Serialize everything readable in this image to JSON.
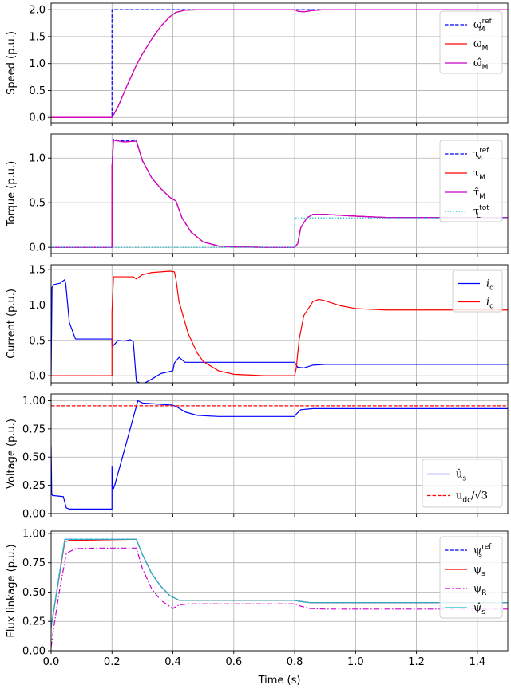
{
  "chart_data": [
    {
      "type": "line",
      "ylabel": "Speed (p.u.)",
      "xlim": [
        0,
        1.5
      ],
      "ylim": [
        -0.1,
        2.12
      ],
      "yticks": [
        0,
        0.5,
        1,
        1.5,
        2
      ],
      "ytick_labels": [
        "0.0",
        "0.5",
        "1.0",
        "1.5",
        "2.0"
      ],
      "grid": true,
      "legend_position": "top-right",
      "series": [
        {
          "name": "ω_M^ref",
          "legend": {
            "base": "ω",
            "sub": "M",
            "sup": "ref"
          },
          "color": "#0000ff",
          "dash": "dashed",
          "x": [
            0,
            0.2,
            0.2,
            1.5
          ],
          "y": [
            0,
            0,
            2,
            2
          ]
        },
        {
          "name": "ω_M",
          "legend": {
            "base": "ω",
            "sub": "M"
          },
          "color": "#ff0000",
          "dash": "solid",
          "x": [
            0,
            0.2,
            0.22,
            0.25,
            0.28,
            0.3,
            0.33,
            0.36,
            0.39,
            0.41,
            0.44,
            0.5,
            0.6,
            0.8,
            0.81,
            0.83,
            0.86,
            0.9,
            1.0,
            1.5
          ],
          "y": [
            0,
            0,
            0.2,
            0.6,
            0.97,
            1.18,
            1.45,
            1.69,
            1.87,
            1.95,
            1.99,
            2.0,
            2.0,
            2.0,
            1.97,
            1.96,
            1.985,
            2.0,
            2.0,
            2.0
          ]
        },
        {
          "name": "ω̂_M",
          "legend": {
            "base": "ω̂",
            "sub": "M"
          },
          "color": "#cc00cc",
          "dash": "solid",
          "x": [
            0,
            0.2,
            0.22,
            0.25,
            0.28,
            0.3,
            0.33,
            0.36,
            0.39,
            0.41,
            0.44,
            0.5,
            0.6,
            0.8,
            0.81,
            0.83,
            0.86,
            0.9,
            1.0,
            1.5
          ],
          "y": [
            0,
            0,
            0.2,
            0.6,
            0.97,
            1.18,
            1.45,
            1.69,
            1.87,
            1.95,
            1.99,
            2.0,
            2.0,
            2.0,
            1.97,
            1.96,
            1.985,
            2.0,
            2.0,
            2.0
          ]
        }
      ]
    },
    {
      "type": "line",
      "ylabel": "Torque (p.u.)",
      "xlim": [
        0,
        1.5
      ],
      "ylim": [
        -0.07,
        1.27
      ],
      "yticks": [
        0,
        0.5,
        1
      ],
      "ytick_labels": [
        "0.0",
        "0.5",
        "1.0"
      ],
      "grid": true,
      "legend_position": "top-right",
      "series": [
        {
          "name": "τ_M^ref",
          "legend": {
            "base": "τ",
            "sub": "M",
            "sup": "ref"
          },
          "color": "#0000ff",
          "dash": "dashed",
          "x": [
            0,
            0.2,
            0.2,
            0.205,
            0.24,
            0.28,
            0.3,
            0.33,
            0.36,
            0.39,
            0.41,
            0.43,
            0.46,
            0.5,
            0.55,
            0.6,
            0.7,
            0.8,
            0.81,
            0.82,
            0.84,
            0.86,
            0.9,
            1.0,
            1.1,
            1.5
          ],
          "y": [
            0,
            0,
            0.9,
            1.21,
            1.19,
            1.2,
            0.97,
            0.78,
            0.66,
            0.56,
            0.52,
            0.33,
            0.17,
            0.06,
            0.015,
            0.005,
            0,
            0,
            0.04,
            0.22,
            0.33,
            0.37,
            0.37,
            0.35,
            0.335,
            0.335
          ]
        },
        {
          "name": "τ_M",
          "legend": {
            "base": "τ",
            "sub": "M"
          },
          "color": "#ff0000",
          "dash": "solid",
          "x": [
            0,
            0.2,
            0.2,
            0.205,
            0.24,
            0.28,
            0.3,
            0.33,
            0.36,
            0.39,
            0.41,
            0.43,
            0.46,
            0.5,
            0.55,
            0.6,
            0.7,
            0.8,
            0.81,
            0.82,
            0.84,
            0.86,
            0.9,
            1.0,
            1.1,
            1.5
          ],
          "y": [
            0,
            0,
            0.9,
            1.2,
            1.18,
            1.19,
            0.97,
            0.78,
            0.66,
            0.56,
            0.52,
            0.33,
            0.17,
            0.06,
            0.015,
            0.005,
            0,
            0,
            0.04,
            0.22,
            0.33,
            0.37,
            0.37,
            0.35,
            0.335,
            0.335
          ]
        },
        {
          "name": "τ̂_M",
          "legend": {
            "base": "τ̂",
            "sub": "M"
          },
          "color": "#cc00cc",
          "dash": "solid",
          "x": [
            0,
            0.2,
            0.2,
            0.205,
            0.24,
            0.28,
            0.3,
            0.33,
            0.36,
            0.39,
            0.41,
            0.43,
            0.46,
            0.5,
            0.55,
            0.6,
            0.7,
            0.8,
            0.81,
            0.82,
            0.84,
            0.86,
            0.9,
            1.0,
            1.1,
            1.5
          ],
          "y": [
            0,
            0,
            0.9,
            1.2,
            1.18,
            1.19,
            0.97,
            0.78,
            0.66,
            0.56,
            0.52,
            0.33,
            0.17,
            0.06,
            0.015,
            0.005,
            0,
            0,
            0.04,
            0.22,
            0.33,
            0.37,
            0.37,
            0.35,
            0.335,
            0.335
          ]
        },
        {
          "name": "τ_L^tot",
          "legend": {
            "base": "τ",
            "sub": "L",
            "sup": "tot"
          },
          "color": "#17becf",
          "dash": "dotted",
          "x": [
            0,
            0.8,
            0.8,
            1.5
          ],
          "y": [
            0,
            0,
            0.33,
            0.33
          ]
        }
      ]
    },
    {
      "type": "line",
      "ylabel": "Current (p.u.)",
      "xlim": [
        0,
        1.5
      ],
      "ylim": [
        -0.1,
        1.57
      ],
      "yticks": [
        0,
        0.5,
        1,
        1.5
      ],
      "ytick_labels": [
        "0.0",
        "0.5",
        "1.0",
        "1.5"
      ],
      "grid": true,
      "legend_position": "top-right",
      "series": [
        {
          "name": "i_d",
          "legend": {
            "base": "i",
            "sub": "d",
            "italic": true
          },
          "color": "#0000ff",
          "dash": "solid",
          "x": [
            0,
            0.003,
            0.01,
            0.03,
            0.045,
            0.048,
            0.06,
            0.08,
            0.1,
            0.2,
            0.2,
            0.203,
            0.22,
            0.24,
            0.26,
            0.27,
            0.28,
            0.3,
            0.33,
            0.36,
            0.4,
            0.405,
            0.42,
            0.44,
            0.5,
            0.6,
            0.8,
            0.81,
            0.83,
            0.86,
            0.9,
            1.0,
            1.5
          ],
          "y": [
            0,
            1.25,
            1.29,
            1.31,
            1.36,
            1.3,
            0.75,
            0.52,
            0.52,
            0.52,
            0.44,
            0.42,
            0.5,
            0.49,
            0.51,
            0.48,
            -0.08,
            -0.12,
            -0.05,
            0.03,
            0.07,
            0.18,
            0.26,
            0.19,
            0.19,
            0.19,
            0.19,
            0.12,
            0.11,
            0.15,
            0.16,
            0.16,
            0.16
          ]
        },
        {
          "name": "i_q",
          "legend": {
            "base": "i",
            "sub": "q",
            "italic": true
          },
          "color": "#ff0000",
          "dash": "solid",
          "x": [
            0,
            0.2,
            0.2,
            0.205,
            0.26,
            0.27,
            0.28,
            0.3,
            0.33,
            0.36,
            0.39,
            0.405,
            0.41,
            0.42,
            0.45,
            0.48,
            0.5,
            0.55,
            0.6,
            0.7,
            0.8,
            0.805,
            0.815,
            0.83,
            0.86,
            0.88,
            0.9,
            0.95,
            1.0,
            1.1,
            1.5
          ],
          "y": [
            0,
            0,
            0.9,
            1.4,
            1.4,
            1.4,
            1.37,
            1.43,
            1.46,
            1.47,
            1.48,
            1.47,
            1.37,
            1.05,
            0.6,
            0.32,
            0.2,
            0.07,
            0.02,
            0,
            0,
            0.1,
            0.52,
            0.85,
            1.05,
            1.08,
            1.06,
            0.99,
            0.95,
            0.93,
            0.93
          ]
        }
      ]
    },
    {
      "type": "line",
      "ylabel": "Voltage (p.u.)",
      "xlim": [
        0,
        1.5
      ],
      "ylim": [
        0,
        1.06
      ],
      "yticks": [
        0,
        0.25,
        0.5,
        0.75,
        1
      ],
      "ytick_labels": [
        "0.00",
        "0.25",
        "0.50",
        "0.75",
        "1.00"
      ],
      "grid": true,
      "legend_position": "lower right",
      "series": [
        {
          "name": "û_s",
          "legend": {
            "base": "û",
            "sub": "s"
          },
          "color": "#0000ff",
          "dash": "solid",
          "x": [
            0,
            0.002,
            0.005,
            0.04,
            0.045,
            0.05,
            0.06,
            0.1,
            0.2,
            0.2,
            0.201,
            0.205,
            0.21,
            0.28,
            0.285,
            0.3,
            0.35,
            0.4,
            0.41,
            0.44,
            0.48,
            0.55,
            0.6,
            0.8,
            0.805,
            0.82,
            0.86,
            0.9,
            1.0,
            1.5
          ],
          "y": [
            0.6,
            0.17,
            0.16,
            0.15,
            0.1,
            0.05,
            0.04,
            0.04,
            0.04,
            0.42,
            0.23,
            0.22,
            0.26,
            0.95,
            1.0,
            0.98,
            0.97,
            0.96,
            0.95,
            0.9,
            0.87,
            0.86,
            0.86,
            0.86,
            0.88,
            0.92,
            0.93,
            0.93,
            0.93,
            0.93
          ]
        },
        {
          "name": "u_dc/√3",
          "legend": {
            "base": "u",
            "sub": "dc",
            "tail": "/√3"
          },
          "color": "#ff0000",
          "dash": "dashed",
          "x": [
            0,
            1.5
          ],
          "y": [
            0.955,
            0.955
          ]
        }
      ]
    },
    {
      "type": "line",
      "xlabel": "Time (s)",
      "ylabel": "Flux linkage (p.u.)",
      "xlim": [
        0,
        1.5
      ],
      "ylim": [
        0,
        1.02
      ],
      "yticks": [
        0,
        0.25,
        0.5,
        0.75,
        1
      ],
      "ytick_labels": [
        "0.00",
        "0.25",
        "0.50",
        "0.75",
        "1.00"
      ],
      "xticks": [
        0,
        0.2,
        0.4,
        0.6,
        0.8,
        1.0,
        1.2,
        1.4
      ],
      "xtick_labels": [
        "0.0",
        "0.2",
        "0.4",
        "0.6",
        "0.8",
        "1.0",
        "1.2",
        "1.4"
      ],
      "grid": true,
      "legend_position": "top-right",
      "series": [
        {
          "name": "ψ_s^ref",
          "legend": {
            "base": "ψ",
            "sub": "s",
            "sup": "ref"
          },
          "color": "#0000ff",
          "dash": "dashed",
          "x": [
            0,
            0.045,
            0.28,
            0.3,
            0.33,
            0.36,
            0.39,
            0.42,
            0.45,
            0.5,
            0.6,
            0.8,
            0.82,
            0.85,
            0.9,
            1.0,
            1.5
          ],
          "y": [
            0.2,
            0.95,
            0.95,
            0.82,
            0.66,
            0.55,
            0.47,
            0.43,
            0.43,
            0.43,
            0.43,
            0.43,
            0.42,
            0.41,
            0.41,
            0.41,
            0.41
          ]
        },
        {
          "name": "ψ_s",
          "legend": {
            "base": "ψ",
            "sub": "s"
          },
          "color": "#ff0000",
          "dash": "solid",
          "x": [
            0,
            0.045,
            0.06,
            0.28,
            0.3,
            0.33,
            0.36,
            0.39,
            0.42,
            0.45,
            0.5,
            0.6,
            0.8,
            0.82,
            0.85,
            0.9,
            1.0,
            1.5
          ],
          "y": [
            0.2,
            0.93,
            0.94,
            0.95,
            0.82,
            0.66,
            0.55,
            0.47,
            0.43,
            0.43,
            0.43,
            0.43,
            0.43,
            0.42,
            0.41,
            0.41,
            0.41,
            0.41
          ]
        },
        {
          "name": "ψ_R",
          "legend": {
            "base": "ψ",
            "sub": "R"
          },
          "color": "#cc00cc",
          "dash": "dashdot",
          "x": [
            0,
            0.01,
            0.03,
            0.05,
            0.08,
            0.15,
            0.28,
            0.3,
            0.33,
            0.36,
            0.4,
            0.42,
            0.45,
            0.5,
            0.6,
            0.8,
            0.82,
            0.85,
            0.9,
            1.0,
            1.5
          ],
          "y": [
            0.03,
            0.22,
            0.55,
            0.83,
            0.87,
            0.875,
            0.875,
            0.7,
            0.53,
            0.43,
            0.36,
            0.39,
            0.4,
            0.4,
            0.4,
            0.4,
            0.38,
            0.36,
            0.355,
            0.355,
            0.355
          ]
        },
        {
          "name": "ψ̂_s",
          "legend": {
            "base": "ψ̂",
            "sub": "s"
          },
          "color": "#17becf",
          "dash": "solid",
          "x": [
            0,
            0.045,
            0.28,
            0.3,
            0.33,
            0.36,
            0.39,
            0.42,
            0.45,
            0.5,
            0.6,
            0.8,
            0.82,
            0.85,
            0.9,
            1.0,
            1.5
          ],
          "y": [
            0.2,
            0.95,
            0.95,
            0.82,
            0.66,
            0.55,
            0.47,
            0.43,
            0.43,
            0.43,
            0.43,
            0.43,
            0.42,
            0.41,
            0.41,
            0.41,
            0.41
          ]
        }
      ]
    }
  ]
}
